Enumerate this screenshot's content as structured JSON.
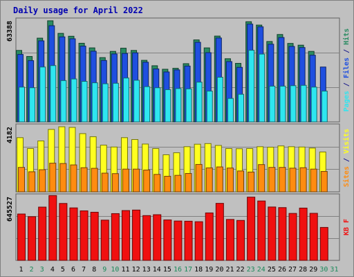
{
  "title": "Daily usage for April 2022",
  "colors": {
    "background": "#c0c0c0",
    "hits": "#2a8b62",
    "files": "#1f4fe0",
    "pages": "#2ee6f0",
    "visits": "#ffff20",
    "sites": "#ff8c10",
    "kbytes": "#f01010",
    "weekend_label": "#1a8a5a"
  },
  "chart_data": [
    {
      "type": "bar",
      "name": "hits-files-pages",
      "ylabel": "Pages / Files / Hits",
      "ytick": "63388",
      "ylim": [
        0,
        63388
      ],
      "categories": [
        "1",
        "2",
        "3",
        "4",
        "5",
        "6",
        "7",
        "8",
        "9",
        "10",
        "11",
        "12",
        "13",
        "14",
        "15",
        "16",
        "17",
        "18",
        "19",
        "20",
        "21",
        "22",
        "23",
        "24",
        "25",
        "26",
        "27",
        "28",
        "29",
        "30",
        "31"
      ],
      "series": [
        {
          "name": "Hits",
          "values": [
            44800,
            41000,
            52500,
            63400,
            55500,
            53700,
            49300,
            46400,
            40300,
            44200,
            46200,
            44800,
            38600,
            35200,
            33000,
            33600,
            36500,
            51400,
            46400,
            53800,
            39600,
            36700,
            62800,
            60700,
            50400,
            54800,
            49200,
            48100,
            44200,
            0,
            0
          ]
        },
        {
          "name": "Files",
          "values": [
            42300,
            38400,
            50800,
            60300,
            53300,
            52100,
            47500,
            44300,
            38500,
            42600,
            42900,
            43300,
            37400,
            33200,
            31300,
            32600,
            35000,
            49900,
            43400,
            52600,
            37800,
            34200,
            61300,
            59600,
            48700,
            52900,
            47300,
            46600,
            41800,
            34400,
            0
          ]
        },
        {
          "name": "Pages",
          "values": [
            21800,
            21400,
            34400,
            35300,
            25900,
            26900,
            25400,
            24500,
            23900,
            24200,
            27500,
            26100,
            22100,
            21400,
            20200,
            20900,
            20700,
            24900,
            19300,
            28000,
            14700,
            17300,
            44900,
            42500,
            22400,
            22400,
            22700,
            22900,
            21800,
            19300,
            0
          ]
        }
      ]
    },
    {
      "type": "bar",
      "name": "visits-sites",
      "ylabel": "Sites / Visits",
      "ytick": "4182",
      "ylim": [
        0,
        4182
      ],
      "categories": [
        "1",
        "2",
        "3",
        "4",
        "5",
        "6",
        "7",
        "8",
        "9",
        "10",
        "11",
        "12",
        "13",
        "14",
        "15",
        "16",
        "17",
        "18",
        "19",
        "20",
        "21",
        "22",
        "23",
        "24",
        "25",
        "26",
        "27",
        "28",
        "29",
        "30",
        "31"
      ],
      "series": [
        {
          "name": "Visits",
          "values": [
            3480,
            2780,
            3270,
            4010,
            4180,
            4140,
            3740,
            3540,
            3000,
            2880,
            3480,
            3360,
            3070,
            2780,
            2380,
            2510,
            2900,
            3060,
            3100,
            2980,
            2780,
            2770,
            2780,
            2900,
            2870,
            2950,
            2900,
            2880,
            2810,
            2560,
            0
          ]
        },
        {
          "name": "Sites",
          "values": [
            1570,
            1290,
            1420,
            1840,
            1820,
            1730,
            1550,
            1510,
            1200,
            1170,
            1460,
            1460,
            1400,
            1120,
            1000,
            1060,
            1180,
            1760,
            1540,
            1600,
            1530,
            1340,
            1270,
            1750,
            1570,
            1570,
            1520,
            1550,
            1460,
            1310,
            0
          ]
        }
      ]
    },
    {
      "type": "bar",
      "name": "kbytes",
      "ylabel": "KB F",
      "ytick": "645527",
      "ylim": [
        0,
        645527
      ],
      "categories": [
        "1",
        "2",
        "3",
        "4",
        "5",
        "6",
        "7",
        "8",
        "9",
        "10",
        "11",
        "12",
        "13",
        "14",
        "15",
        "16",
        "17",
        "18",
        "19",
        "20",
        "21",
        "22",
        "23",
        "24",
        "25",
        "26",
        "27",
        "28",
        "29",
        "30",
        "31"
      ],
      "series": [
        {
          "name": "KB F",
          "values": [
            470000,
            443000,
            540000,
            657000,
            577000,
            532000,
            502000,
            488000,
            408000,
            474000,
            505000,
            510000,
            454000,
            463000,
            410000,
            399000,
            397000,
            392000,
            481000,
            578000,
            415000,
            405000,
            641000,
            602000,
            541000,
            535000,
            476000,
            530000,
            477000,
            334000,
            0
          ]
        }
      ]
    }
  ],
  "weekend_days": [
    "2",
    "3",
    "9",
    "10",
    "16",
    "17",
    "23",
    "24",
    "30",
    "31"
  ]
}
